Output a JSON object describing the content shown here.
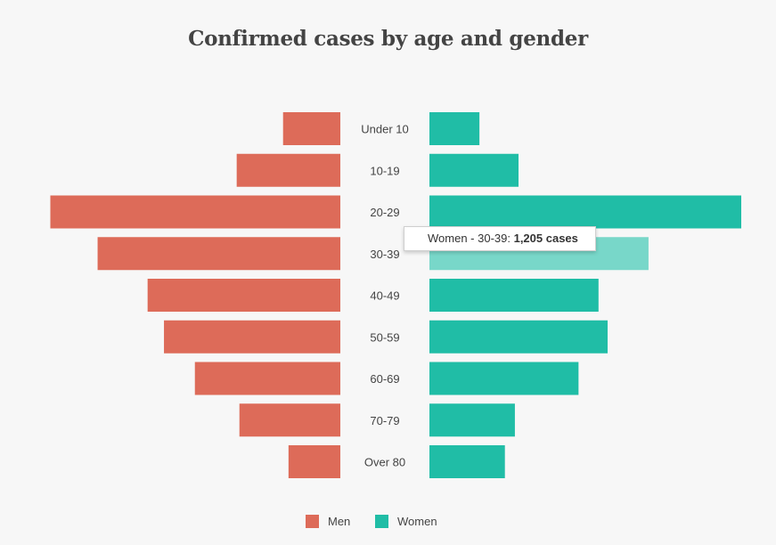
{
  "chart_data": {
    "type": "bar",
    "title": "Confirmed cases by age and gender",
    "categories": [
      "Under 10",
      "10-19",
      "20-29",
      "30-39",
      "40-49",
      "50-59",
      "60-69",
      "70-79",
      "Over 80"
    ],
    "series": [
      {
        "name": "Men",
        "color": "#dd6b59",
        "values": [
          315,
          570,
          1595,
          1335,
          1060,
          970,
          800,
          555,
          285
        ]
      },
      {
        "name": "Women",
        "color": "#20bda6",
        "values": [
          275,
          490,
          1715,
          1205,
          930,
          980,
          820,
          470,
          415
        ]
      }
    ],
    "xlim": [
      0,
      1715
    ],
    "legend_position": "bottom-center",
    "highlight": {
      "series": "Women",
      "category": "30-39",
      "color": "#78d7c9"
    }
  },
  "tooltip": {
    "prefix": "Women - 30-39: ",
    "value": "1,205 cases"
  }
}
